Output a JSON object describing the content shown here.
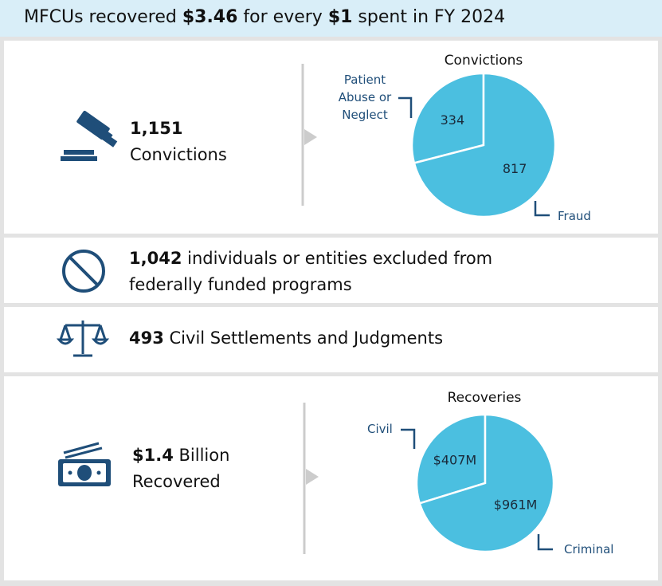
{
  "header": {
    "title_parts": [
      "MFCUs recovered ",
      "$3.46",
      " for every ",
      "$1",
      " spent in FY 2024"
    ]
  },
  "stats": {
    "convictions": {
      "number": "1,151",
      "text": "Convictions"
    },
    "exclusions": {
      "number": "1,042",
      "text": " individuals or entities excluded from federally funded programs"
    },
    "settlements": {
      "number": "493",
      "text": " Civil Settlements and Judgments"
    },
    "recovered": {
      "number": "$1.4",
      "text": " Billion Recovered"
    }
  },
  "chart_data": [
    {
      "type": "pie",
      "title": "Convictions",
      "categories": [
        "Patient Abuse or Neglect",
        "Fraud"
      ],
      "values": [
        334,
        817
      ],
      "color": "#4bbfe0"
    },
    {
      "type": "pie",
      "title": "Recoveries",
      "categories": [
        "Civil",
        "Criminal"
      ],
      "values": [
        407,
        961
      ],
      "value_labels": [
        "$407M",
        "$961M"
      ],
      "color": "#4bbfe0"
    }
  ]
}
